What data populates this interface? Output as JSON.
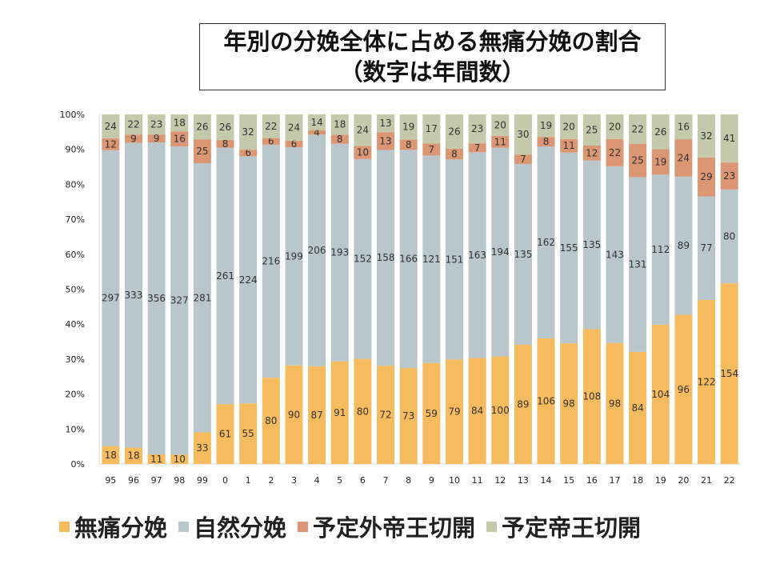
{
  "chart_data": {
    "type": "bar",
    "stacked": "percent",
    "title": "年別の分娩全体に占める無痛分娩の割合",
    "subtitle": "（数字は年間数）",
    "categories": [
      "95",
      "96",
      "97",
      "98",
      "99",
      "0",
      "1",
      "2",
      "3",
      "4",
      "5",
      "6",
      "7",
      "8",
      "9",
      "10",
      "11",
      "12",
      "13",
      "14",
      "15",
      "16",
      "17",
      "18",
      "19",
      "20",
      "21",
      "22"
    ],
    "series": [
      {
        "name": "無痛分娩",
        "color": "#f5bb5e",
        "values": [
          18,
          18,
          11,
          10,
          33,
          61,
          55,
          80,
          90,
          87,
          91,
          80,
          72,
          73,
          59,
          79,
          84,
          100,
          89,
          106,
          98,
          108,
          98,
          84,
          104,
          96,
          122,
          154
        ]
      },
      {
        "name": "自然分娩",
        "color": "#b9c6cc",
        "values": [
          297,
          333,
          356,
          327,
          281,
          261,
          224,
          216,
          199,
          206,
          193,
          152,
          158,
          166,
          121,
          151,
          163,
          194,
          135,
          162,
          155,
          135,
          143,
          131,
          112,
          89,
          77,
          80
        ]
      },
      {
        "name": "予定外帝王切開",
        "color": "#db9673",
        "values": [
          12,
          9,
          9,
          16,
          25,
          8,
          6,
          6,
          6,
          4,
          8,
          10,
          13,
          8,
          7,
          8,
          7,
          11,
          7,
          8,
          11,
          12,
          22,
          25,
          19,
          24,
          29,
          23
        ]
      },
      {
        "name": "予定帝王切開",
        "color": "#c5c9ac",
        "values": [
          24,
          22,
          23,
          18,
          26,
          26,
          32,
          22,
          24,
          14,
          18,
          24,
          13,
          19,
          17,
          26,
          23,
          20,
          30,
          19,
          20,
          25,
          20,
          22,
          26,
          16,
          32,
          41
        ]
      }
    ],
    "y_ticks": [
      "0%",
      "10%",
      "20%",
      "30%",
      "40%",
      "50%",
      "60%",
      "70%",
      "80%",
      "90%",
      "100%"
    ],
    "ylim": [
      0,
      100
    ],
    "legend_position": "bottom",
    "grid": false
  }
}
